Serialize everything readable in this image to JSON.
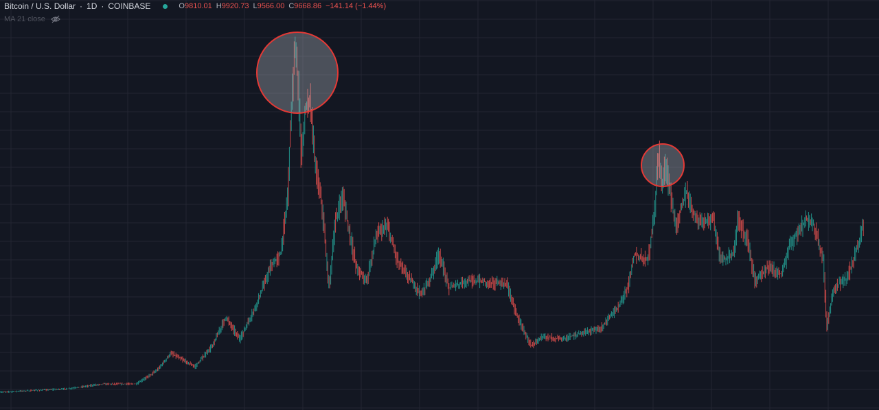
{
  "header": {
    "symbol": "Bitcoin / U.S. Dollar",
    "interval": "1D",
    "exchange": "COINBASE",
    "ohlc": [
      {
        "label": "O",
        "value": "9810.01"
      },
      {
        "label": "H",
        "value": "9920.73"
      },
      {
        "label": "L",
        "value": "9566.00"
      },
      {
        "label": "C",
        "value": "9668.86"
      }
    ],
    "change": "−141.14 (−1.44%)"
  },
  "indicator": {
    "name": "MA 21 close"
  }
}
